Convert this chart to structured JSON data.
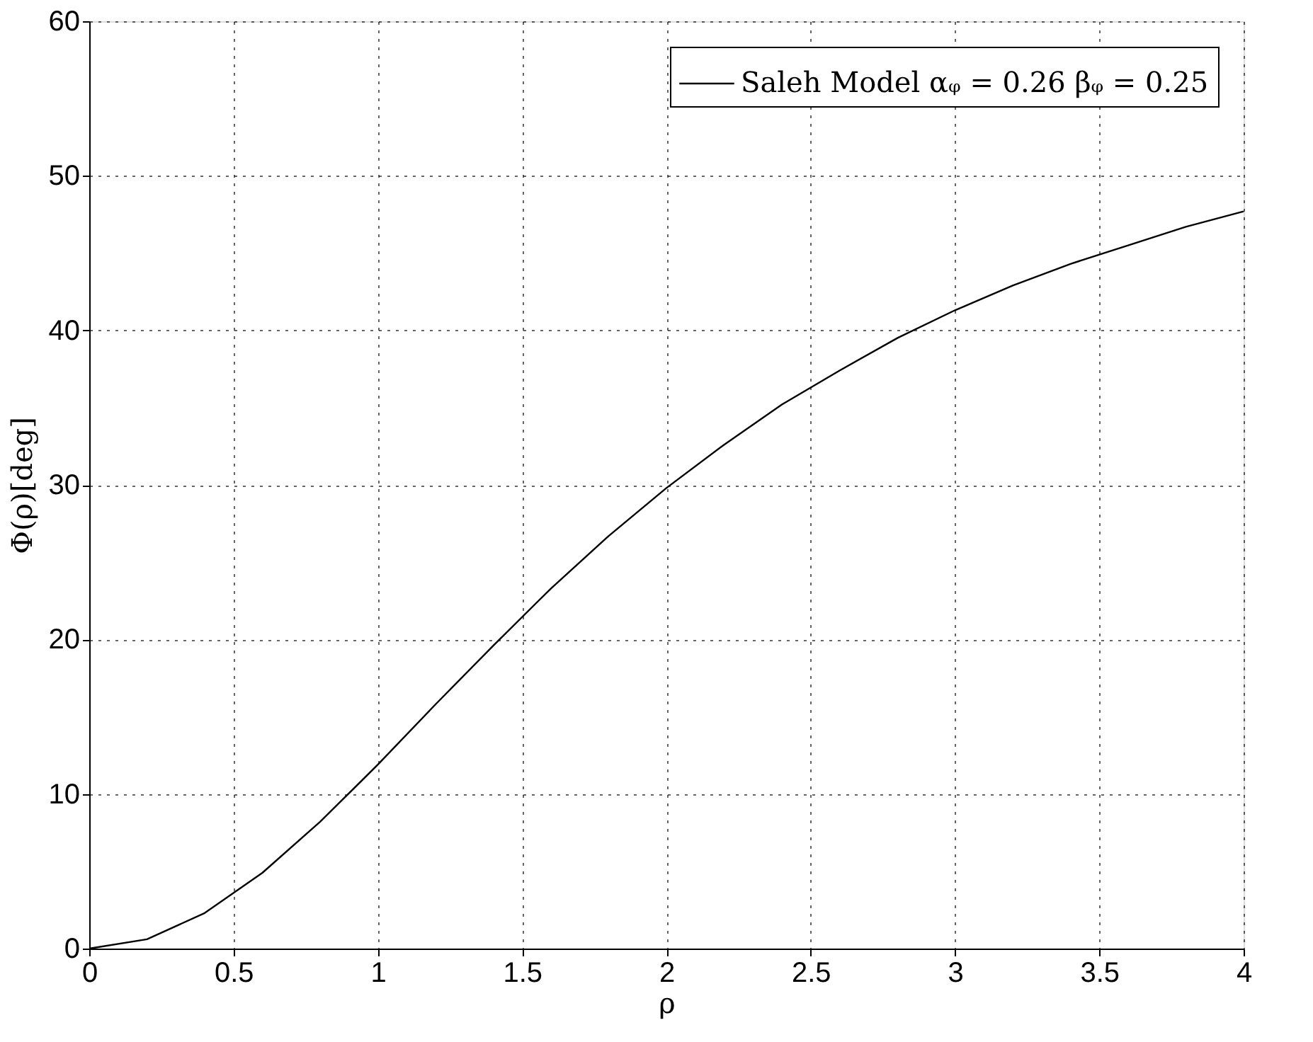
{
  "chart_data": {
    "type": "line",
    "xlabel": "ρ",
    "ylabel": "Φ(ρ)[deg]",
    "x": [
      0,
      0.2,
      0.4,
      0.6,
      0.8,
      1.0,
      1.2,
      1.4,
      1.6,
      1.8,
      2.0,
      2.2,
      2.4,
      2.6,
      2.8,
      3.0,
      3.2,
      3.4,
      3.6,
      3.8,
      4.0
    ],
    "series": [
      {
        "name": "Saleh Model αᵩ = 0.26 βᵩ = 0.25",
        "color": "#000000",
        "values": [
          0,
          0.6,
          2.3,
          4.9,
          8.2,
          11.9,
          15.8,
          19.6,
          23.3,
          26.7,
          29.8,
          32.6,
          35.2,
          37.4,
          39.5,
          41.3,
          42.9,
          44.3,
          45.5,
          46.7,
          47.7
        ]
      }
    ],
    "xlim": [
      0,
      4
    ],
    "xticks": [
      0,
      0.5,
      1,
      1.5,
      2,
      2.5,
      3,
      3.5,
      4
    ],
    "ylim": [
      0,
      60
    ],
    "yticks": [
      0,
      10,
      20,
      30,
      40,
      50,
      60
    ],
    "grid": true,
    "legend": "top right",
    "marker": "none",
    "line_style": "solid"
  }
}
